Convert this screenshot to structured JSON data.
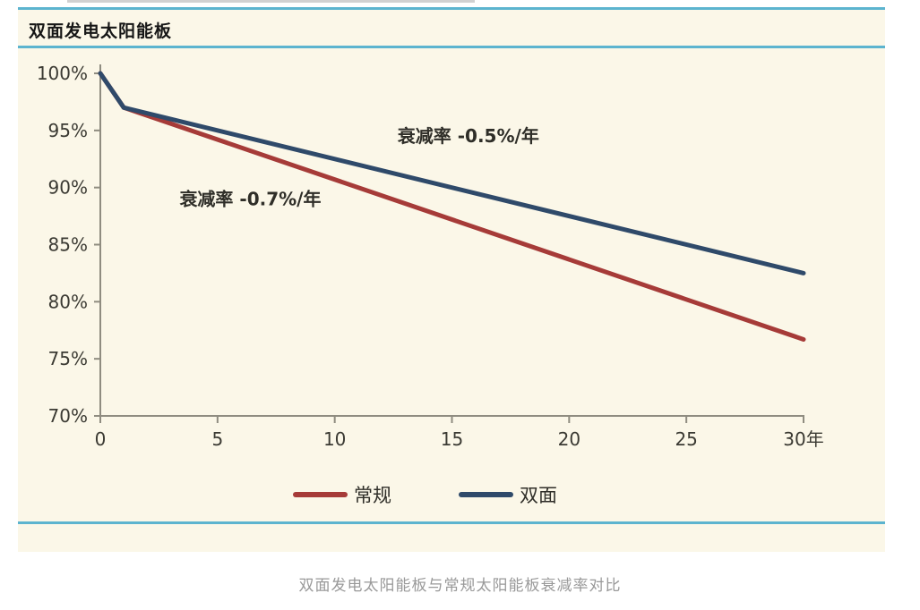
{
  "page": {
    "title": "双面发电太阳能板",
    "caption": "双面发电太阳能板与常规太阳能板衰减率对比"
  },
  "colors": {
    "card_bg": "#fbf7e8",
    "accent_blue": "#5cb4cf",
    "axis_line": "#8f8c80",
    "tick_text": "#3b3a33",
    "annotation_text": "#2f2e28",
    "legend_text": "#2f2e28",
    "caption_gray": "#999999",
    "series_conventional_red": "#a63b38",
    "series_bifacial_navy": "#2f4a6a"
  },
  "chart_data": {
    "type": "line",
    "title": "双面发电太阳能板",
    "xlabel": "年",
    "ylabel": "",
    "xlim": [
      0,
      30
    ],
    "ylim": [
      70,
      100
    ],
    "x_ticks": [
      0,
      5,
      10,
      15,
      20,
      25,
      30
    ],
    "x_tick_labels": [
      "0",
      "5",
      "10",
      "15",
      "20",
      "25",
      "30年"
    ],
    "y_ticks": [
      100,
      95,
      90,
      85,
      80,
      75,
      70
    ],
    "y_tick_labels": [
      "100%",
      "95%",
      "90%",
      "85%",
      "80%",
      "75%",
      "70%"
    ],
    "grid": false,
    "legend_position": "bottom-center",
    "series": [
      {
        "name": "常规",
        "color": "#a63b38",
        "points": [
          [
            0,
            100
          ],
          [
            1,
            97
          ],
          [
            30,
            76.7
          ]
        ],
        "annotation": {
          "text": "衰减率 -0.7%/年",
          "x": 6.4,
          "y": 89
        }
      },
      {
        "name": "双面",
        "color": "#2f4a6a",
        "points": [
          [
            0,
            100
          ],
          [
            1,
            97
          ],
          [
            30,
            82.5
          ]
        ],
        "annotation": {
          "text": "衰减率 -0.5%/年",
          "x": 15.7,
          "y": 94.5
        }
      }
    ]
  }
}
